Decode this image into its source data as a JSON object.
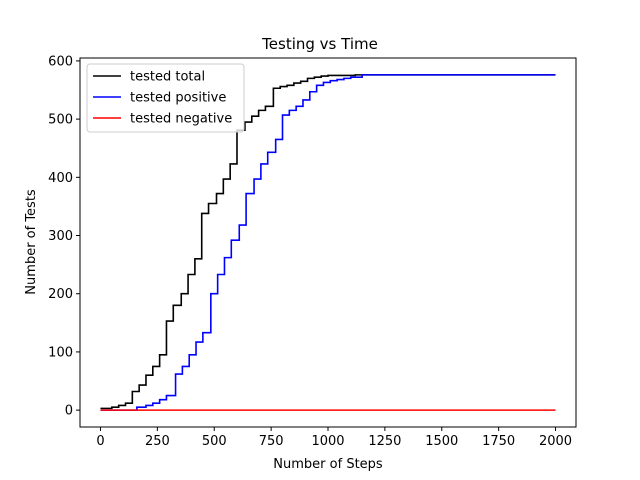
{
  "chart_data": {
    "type": "line",
    "title": "Testing vs Time",
    "xlabel": "Number of Steps",
    "ylabel": "Number of Tests",
    "xlim": [
      -90,
      2090
    ],
    "ylim": [
      -29,
      605
    ],
    "xticks": [
      0,
      250,
      500,
      750,
      1000,
      1250,
      1500,
      1750,
      2000
    ],
    "yticks": [
      0,
      100,
      200,
      300,
      400,
      500,
      600
    ],
    "grid": false,
    "legend_position": "top-left",
    "series": [
      {
        "name": "tested total",
        "color": "#000000",
        "step": true,
        "x": [
          0,
          50,
          80,
          110,
          140,
          170,
          200,
          230,
          260,
          290,
          320,
          355,
          385,
          415,
          445,
          475,
          510,
          540,
          570,
          600,
          635,
          665,
          695,
          725,
          760,
          790,
          820,
          850,
          880,
          910,
          940,
          970,
          1000,
          1040,
          1080,
          1120,
          1200,
          1300,
          2000
        ],
        "y": [
          3,
          5,
          8,
          12,
          32,
          43,
          60,
          75,
          95,
          153,
          180,
          200,
          233,
          260,
          338,
          355,
          372,
          397,
          423,
          481,
          495,
          505,
          515,
          522,
          553,
          556,
          558,
          562,
          565,
          570,
          572,
          574,
          575,
          575,
          575,
          576,
          576,
          576,
          576
        ]
      },
      {
        "name": "tested positive",
        "color": "#0000ff",
        "step": true,
        "x": [
          0,
          160,
          200,
          230,
          260,
          290,
          330,
          360,
          390,
          420,
          450,
          485,
          515,
          545,
          575,
          610,
          640,
          675,
          705,
          735,
          770,
          800,
          830,
          860,
          890,
          920,
          950,
          980,
          1010,
          1040,
          1070,
          1100,
          1150,
          1300,
          2000
        ],
        "y": [
          0,
          5,
          8,
          12,
          18,
          25,
          62,
          75,
          95,
          117,
          133,
          200,
          233,
          262,
          292,
          318,
          372,
          397,
          423,
          443,
          465,
          507,
          515,
          522,
          533,
          547,
          558,
          563,
          566,
          568,
          570,
          572,
          576,
          576,
          576
        ]
      },
      {
        "name": "tested negative",
        "color": "#ff0000",
        "step": false,
        "x": [
          0,
          2000
        ],
        "y": [
          0,
          0
        ]
      }
    ]
  }
}
